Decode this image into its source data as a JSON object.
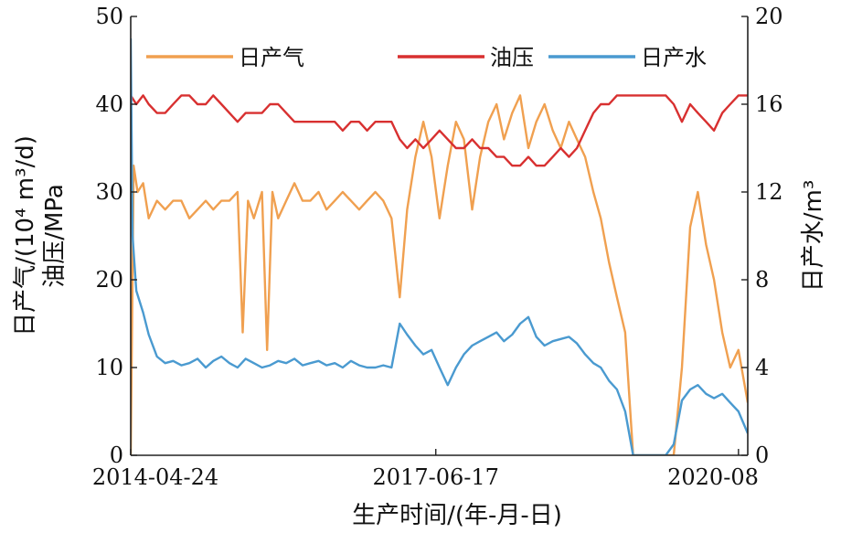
{
  "chart_data": {
    "type": "line",
    "title": "",
    "xlabel": "生产时间/(年-月-日)",
    "ylabel_left_line1": "日产气/(10⁴ m³/d)",
    "ylabel_left_line2": "油压/MPa",
    "ylabel_right": "日产水/m³",
    "x_ticks": [
      "2014-04-24",
      "2017-06-17",
      "2020-08"
    ],
    "x_range": [
      "2014-04-24",
      "2020-09-05"
    ],
    "y_left_ticks": [
      "0",
      "10",
      "20",
      "30",
      "40",
      "50"
    ],
    "y_left_range": [
      0,
      50
    ],
    "y_right_ticks": [
      "0",
      "4",
      "8",
      "12",
      "16",
      "20"
    ],
    "y_right_range": [
      0,
      20
    ],
    "grid": false,
    "legend_position": "top",
    "series": [
      {
        "name": "日产气",
        "axis": "left",
        "color": "#f0a050",
        "points": [
          [
            "2014-04-24",
            0
          ],
          [
            "2014-05-05",
            33
          ],
          [
            "2014-05-20",
            30
          ],
          [
            "2014-06-10",
            31
          ],
          [
            "2014-07-01",
            27
          ],
          [
            "2014-08-01",
            29
          ],
          [
            "2014-09-01",
            28
          ],
          [
            "2014-10-01",
            29
          ],
          [
            "2014-11-01",
            29
          ],
          [
            "2014-12-01",
            27
          ],
          [
            "2015-01-01",
            28
          ],
          [
            "2015-02-01",
            29
          ],
          [
            "2015-03-01",
            28
          ],
          [
            "2015-04-01",
            29
          ],
          [
            "2015-05-01",
            29
          ],
          [
            "2015-06-01",
            30
          ],
          [
            "2015-06-20",
            14
          ],
          [
            "2015-07-10",
            29
          ],
          [
            "2015-08-01",
            27
          ],
          [
            "2015-09-01",
            30
          ],
          [
            "2015-09-20",
            12
          ],
          [
            "2015-10-10",
            30
          ],
          [
            "2015-11-01",
            27
          ],
          [
            "2015-12-01",
            29
          ],
          [
            "2016-01-01",
            31
          ],
          [
            "2016-02-01",
            29
          ],
          [
            "2016-03-01",
            29
          ],
          [
            "2016-04-01",
            30
          ],
          [
            "2016-05-01",
            28
          ],
          [
            "2016-06-01",
            29
          ],
          [
            "2016-07-01",
            30
          ],
          [
            "2016-08-01",
            29
          ],
          [
            "2016-09-01",
            28
          ],
          [
            "2016-10-01",
            29
          ],
          [
            "2016-11-01",
            30
          ],
          [
            "2016-12-01",
            29
          ],
          [
            "2017-01-01",
            27
          ],
          [
            "2017-02-01",
            18
          ],
          [
            "2017-03-01",
            28
          ],
          [
            "2017-04-01",
            34
          ],
          [
            "2017-05-01",
            38
          ],
          [
            "2017-06-01",
            34
          ],
          [
            "2017-07-01",
            27
          ],
          [
            "2017-08-01",
            33
          ],
          [
            "2017-09-01",
            38
          ],
          [
            "2017-10-01",
            36
          ],
          [
            "2017-11-01",
            28
          ],
          [
            "2017-12-01",
            34
          ],
          [
            "2018-01-01",
            38
          ],
          [
            "2018-02-01",
            40
          ],
          [
            "2018-03-01",
            36
          ],
          [
            "2018-04-01",
            39
          ],
          [
            "2018-05-01",
            41
          ],
          [
            "2018-06-01",
            35
          ],
          [
            "2018-07-01",
            38
          ],
          [
            "2018-08-01",
            40
          ],
          [
            "2018-09-01",
            37
          ],
          [
            "2018-10-01",
            35
          ],
          [
            "2018-11-01",
            38
          ],
          [
            "2018-12-01",
            36
          ],
          [
            "2019-01-01",
            34
          ],
          [
            "2019-02-01",
            30
          ],
          [
            "2019-03-01",
            27
          ],
          [
            "2019-04-01",
            22
          ],
          [
            "2019-05-01",
            18
          ],
          [
            "2019-06-01",
            14
          ],
          [
            "2019-07-01",
            0
          ],
          [
            "2019-08-01",
            0
          ],
          [
            "2019-09-01",
            0
          ],
          [
            "2019-10-01",
            0
          ],
          [
            "2019-11-01",
            0
          ],
          [
            "2019-12-01",
            0
          ],
          [
            "2020-01-01",
            10
          ],
          [
            "2020-02-01",
            26
          ],
          [
            "2020-03-01",
            30
          ],
          [
            "2020-04-01",
            24
          ],
          [
            "2020-05-01",
            20
          ],
          [
            "2020-06-01",
            14
          ],
          [
            "2020-07-01",
            10
          ],
          [
            "2020-08-01",
            12
          ],
          [
            "2020-09-05",
            6
          ]
        ]
      },
      {
        "name": "油压",
        "axis": "left",
        "color": "#d83030",
        "points": [
          [
            "2014-04-24",
            41
          ],
          [
            "2014-05-15",
            40
          ],
          [
            "2014-06-10",
            41
          ],
          [
            "2014-07-01",
            40
          ],
          [
            "2014-08-01",
            39
          ],
          [
            "2014-09-01",
            39
          ],
          [
            "2014-10-01",
            40
          ],
          [
            "2014-11-01",
            41
          ],
          [
            "2014-12-01",
            41
          ],
          [
            "2015-01-01",
            40
          ],
          [
            "2015-02-01",
            40
          ],
          [
            "2015-03-01",
            41
          ],
          [
            "2015-04-01",
            40
          ],
          [
            "2015-05-01",
            39
          ],
          [
            "2015-06-01",
            38
          ],
          [
            "2015-07-01",
            39
          ],
          [
            "2015-08-01",
            39
          ],
          [
            "2015-09-01",
            39
          ],
          [
            "2015-10-01",
            40
          ],
          [
            "2015-11-01",
            40
          ],
          [
            "2015-12-01",
            39
          ],
          [
            "2016-01-01",
            38
          ],
          [
            "2016-02-01",
            38
          ],
          [
            "2016-03-01",
            38
          ],
          [
            "2016-04-01",
            38
          ],
          [
            "2016-05-01",
            38
          ],
          [
            "2016-06-01",
            38
          ],
          [
            "2016-07-01",
            37
          ],
          [
            "2016-08-01",
            38
          ],
          [
            "2016-09-01",
            38
          ],
          [
            "2016-10-01",
            37
          ],
          [
            "2016-11-01",
            38
          ],
          [
            "2016-12-01",
            38
          ],
          [
            "2017-01-01",
            38
          ],
          [
            "2017-02-01",
            36
          ],
          [
            "2017-03-01",
            35
          ],
          [
            "2017-04-01",
            36
          ],
          [
            "2017-05-01",
            35
          ],
          [
            "2017-06-01",
            36
          ],
          [
            "2017-07-01",
            37
          ],
          [
            "2017-08-01",
            36
          ],
          [
            "2017-09-01",
            35
          ],
          [
            "2017-10-01",
            35
          ],
          [
            "2017-11-01",
            36
          ],
          [
            "2017-12-01",
            35
          ],
          [
            "2018-01-01",
            35
          ],
          [
            "2018-02-01",
            34
          ],
          [
            "2018-03-01",
            34
          ],
          [
            "2018-04-01",
            33
          ],
          [
            "2018-05-01",
            33
          ],
          [
            "2018-06-01",
            34
          ],
          [
            "2018-07-01",
            33
          ],
          [
            "2018-08-01",
            33
          ],
          [
            "2018-09-01",
            34
          ],
          [
            "2018-10-01",
            35
          ],
          [
            "2018-11-01",
            34
          ],
          [
            "2018-12-01",
            35
          ],
          [
            "2019-01-01",
            37
          ],
          [
            "2019-02-01",
            39
          ],
          [
            "2019-03-01",
            40
          ],
          [
            "2019-04-01",
            40
          ],
          [
            "2019-05-01",
            41
          ],
          [
            "2019-06-01",
            41
          ],
          [
            "2019-07-01",
            41
          ],
          [
            "2019-08-01",
            41
          ],
          [
            "2019-09-01",
            41
          ],
          [
            "2019-10-01",
            41
          ],
          [
            "2019-11-01",
            41
          ],
          [
            "2019-12-01",
            40
          ],
          [
            "2020-01-01",
            38
          ],
          [
            "2020-02-01",
            40
          ],
          [
            "2020-03-01",
            39
          ],
          [
            "2020-04-01",
            38
          ],
          [
            "2020-05-01",
            37
          ],
          [
            "2020-06-01",
            39
          ],
          [
            "2020-07-01",
            40
          ],
          [
            "2020-08-01",
            41
          ],
          [
            "2020-09-05",
            41
          ]
        ]
      },
      {
        "name": "日产水",
        "axis": "right",
        "color": "#4a9ad0",
        "points": [
          [
            "2014-04-24",
            19
          ],
          [
            "2014-05-01",
            10
          ],
          [
            "2014-05-15",
            7.5
          ],
          [
            "2014-06-10",
            6.5
          ],
          [
            "2014-07-01",
            5.5
          ],
          [
            "2014-08-01",
            4.5
          ],
          [
            "2014-09-01",
            4.2
          ],
          [
            "2014-10-01",
            4.3
          ],
          [
            "2014-11-01",
            4.1
          ],
          [
            "2014-12-01",
            4.2
          ],
          [
            "2015-01-01",
            4.4
          ],
          [
            "2015-02-01",
            4.0
          ],
          [
            "2015-03-01",
            4.3
          ],
          [
            "2015-04-01",
            4.5
          ],
          [
            "2015-05-01",
            4.2
          ],
          [
            "2015-06-01",
            4.0
          ],
          [
            "2015-07-01",
            4.4
          ],
          [
            "2015-08-01",
            4.2
          ],
          [
            "2015-09-01",
            4.0
          ],
          [
            "2015-10-01",
            4.1
          ],
          [
            "2015-11-01",
            4.3
          ],
          [
            "2015-12-01",
            4.2
          ],
          [
            "2016-01-01",
            4.4
          ],
          [
            "2016-02-01",
            4.1
          ],
          [
            "2016-03-01",
            4.2
          ],
          [
            "2016-04-01",
            4.3
          ],
          [
            "2016-05-01",
            4.1
          ],
          [
            "2016-06-01",
            4.2
          ],
          [
            "2016-07-01",
            4.0
          ],
          [
            "2016-08-01",
            4.3
          ],
          [
            "2016-09-01",
            4.1
          ],
          [
            "2016-10-01",
            4.0
          ],
          [
            "2016-11-01",
            4.0
          ],
          [
            "2016-12-01",
            4.1
          ],
          [
            "2017-01-01",
            4.0
          ],
          [
            "2017-02-01",
            6.0
          ],
          [
            "2017-03-01",
            5.5
          ],
          [
            "2017-04-01",
            5.0
          ],
          [
            "2017-05-01",
            4.6
          ],
          [
            "2017-06-01",
            4.8
          ],
          [
            "2017-07-01",
            4.0
          ],
          [
            "2017-08-01",
            3.2
          ],
          [
            "2017-09-01",
            4.0
          ],
          [
            "2017-10-01",
            4.6
          ],
          [
            "2017-11-01",
            5.0
          ],
          [
            "2017-12-01",
            5.2
          ],
          [
            "2018-01-01",
            5.4
          ],
          [
            "2018-02-01",
            5.6
          ],
          [
            "2018-03-01",
            5.2
          ],
          [
            "2018-04-01",
            5.5
          ],
          [
            "2018-05-01",
            6.0
          ],
          [
            "2018-06-01",
            6.3
          ],
          [
            "2018-07-01",
            5.4
          ],
          [
            "2018-08-01",
            5.0
          ],
          [
            "2018-09-01",
            5.2
          ],
          [
            "2018-10-01",
            5.3
          ],
          [
            "2018-11-01",
            5.4
          ],
          [
            "2018-12-01",
            5.1
          ],
          [
            "2019-01-01",
            4.6
          ],
          [
            "2019-02-01",
            4.2
          ],
          [
            "2019-03-01",
            4.0
          ],
          [
            "2019-04-01",
            3.4
          ],
          [
            "2019-05-01",
            3.0
          ],
          [
            "2019-06-01",
            2.0
          ],
          [
            "2019-07-01",
            0
          ],
          [
            "2019-08-01",
            0
          ],
          [
            "2019-09-01",
            0
          ],
          [
            "2019-10-01",
            0
          ],
          [
            "2019-11-01",
            0
          ],
          [
            "2019-12-01",
            0.5
          ],
          [
            "2020-01-01",
            2.5
          ],
          [
            "2020-02-01",
            3.0
          ],
          [
            "2020-03-01",
            3.2
          ],
          [
            "2020-04-01",
            2.8
          ],
          [
            "2020-05-01",
            2.6
          ],
          [
            "2020-06-01",
            2.8
          ],
          [
            "2020-07-01",
            2.4
          ],
          [
            "2020-08-01",
            2.0
          ],
          [
            "2020-09-05",
            1.0
          ]
        ]
      }
    ]
  }
}
